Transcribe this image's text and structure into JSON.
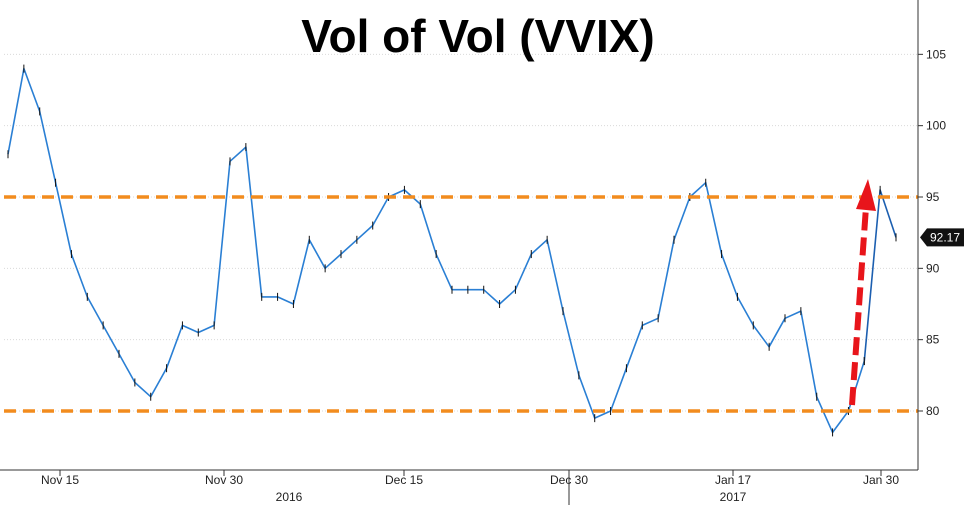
{
  "chart_data": {
    "type": "line",
    "title": "Vol of Vol (VVIX)",
    "x_tick_labels": [
      "Nov 15",
      "Nov 30",
      "Dec 15",
      "Dec 30",
      "Jan 17",
      "Jan 30"
    ],
    "year_labels": [
      "2016",
      "2017"
    ],
    "y_tick_labels": [
      "80",
      "85",
      "90",
      "95",
      "100",
      "105"
    ],
    "ylim": [
      76.5,
      108
    ],
    "last_value_label": "92.17",
    "reference_lines": [
      80,
      95
    ],
    "annotation": "dashed red arrow from 80 up to 95 (late January)",
    "series": [
      {
        "dates": [
          "2016-11-10",
          "2016-11-11",
          "2016-11-14",
          "2016-11-15",
          "2016-11-16",
          "2016-11-17",
          "2016-11-18",
          "2016-11-21",
          "2016-11-22",
          "2016-11-23",
          "2016-11-25",
          "2016-11-28",
          "2016-11-29",
          "2016-11-30",
          "2016-12-01",
          "2016-12-02",
          "2016-12-05",
          "2016-12-06",
          "2016-12-07",
          "2016-12-08",
          "2016-12-09",
          "2016-12-12",
          "2016-12-13",
          "2016-12-14",
          "2016-12-15",
          "2016-12-16",
          "2016-12-19",
          "2016-12-20",
          "2016-12-21",
          "2016-12-22",
          "2016-12-23",
          "2016-12-27",
          "2016-12-28",
          "2016-12-29",
          "2016-12-30",
          "2017-01-03",
          "2017-01-04",
          "2017-01-05",
          "2017-01-06",
          "2017-01-09",
          "2017-01-10",
          "2017-01-11",
          "2017-01-12",
          "2017-01-13",
          "2017-01-17",
          "2017-01-18",
          "2017-01-19",
          "2017-01-20",
          "2017-01-23",
          "2017-01-24",
          "2017-01-25",
          "2017-01-26",
          "2017-01-27",
          "2017-01-30",
          "2017-01-31"
        ],
        "values": [
          98,
          104,
          101,
          96,
          91,
          88,
          86,
          84,
          82,
          81,
          83,
          86,
          85.5,
          86,
          97.5,
          98.5,
          88,
          88,
          87.5,
          92,
          90,
          91,
          92,
          93,
          95,
          95.5,
          94.5,
          91,
          88.5,
          88.5,
          88.5,
          87.5,
          88.5,
          91,
          92,
          87,
          82.5,
          79.5,
          80,
          83,
          86,
          86.5,
          92,
          95,
          96,
          91,
          88,
          86,
          84.5,
          86.5,
          87,
          81,
          78.5,
          80,
          83.5
        ]
      },
      {
        "dates": [
          "2017-01-31",
          "2017-02-01",
          "2017-02-02"
        ],
        "values": [
          83.5,
          95.5,
          92.17
        ]
      }
    ]
  }
}
